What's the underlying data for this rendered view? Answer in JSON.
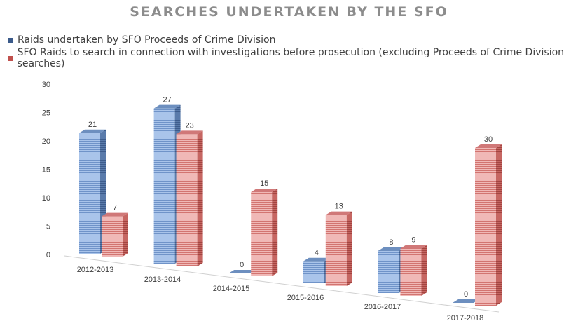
{
  "colors": {
    "title": "#8c8c8c",
    "series1_front": "#8eb4e3",
    "series1_side": "#4a6a9a",
    "series1_top": "#6d8fbf",
    "series1_swatch": "#3b5a8a",
    "series2_front": "#e8a0a0",
    "series2_side": "#b85450",
    "series2_top": "#d07878",
    "series2_swatch": "#c0504d",
    "axis_text": "#404040"
  },
  "chart_data": {
    "type": "bar",
    "title": "SEARCHES UNDERTAKEN BY THE SFO",
    "categories": [
      "2012-2013",
      "2013-2014",
      "2014-2015",
      "2015-2016",
      "2016-2017",
      "2017-2018"
    ],
    "series": [
      {
        "name": "Raids undertaken by SFO Proceeds of Crime Division",
        "values": [
          21,
          27,
          0,
          4,
          8,
          0
        ]
      },
      {
        "name": "SFO Raids to search in connection with investigations before prosecution (excluding Proceeds of Crime Division searches)",
        "values": [
          7,
          23,
          15,
          13,
          9,
          30
        ]
      }
    ],
    "yticks": [
      "0",
      "5",
      "10",
      "15",
      "20",
      "25",
      "30"
    ],
    "ylim": [
      0,
      30
    ],
    "grid": false,
    "legend_position": "top-left",
    "three_d": true
  }
}
